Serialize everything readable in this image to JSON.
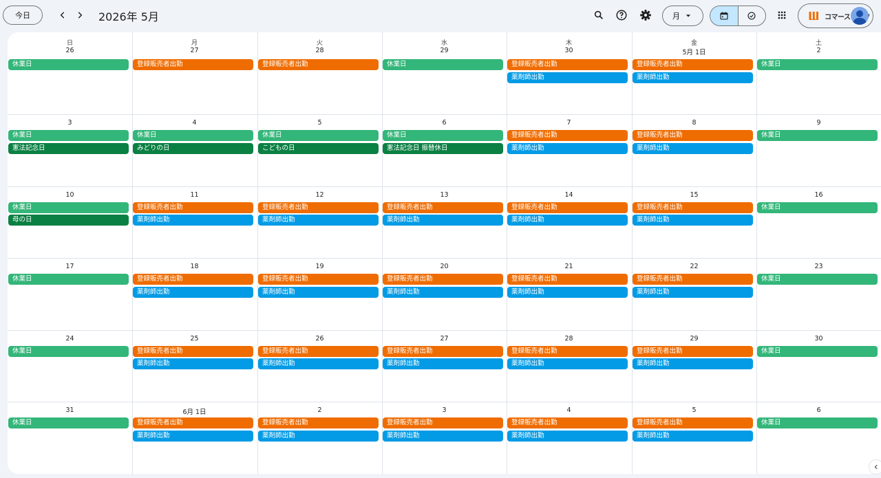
{
  "header": {
    "today_label": "今日",
    "month_title": "2026年 5月",
    "view_label": "月",
    "account_logo_text": "コマースライフ"
  },
  "weekdays": [
    "日",
    "月",
    "火",
    "水",
    "木",
    "金",
    "土"
  ],
  "colors": {
    "holiday_green": "#33b679",
    "national_holiday_green": "#0b8043",
    "orange": "#ef6c00",
    "blue": "#039be5",
    "accent": "#c2e7ff"
  },
  "event_types": {
    "kyugyo": "休業日",
    "hanbai": "登録販売者出勤",
    "yakuzai": "薬剤師出勤"
  },
  "weeks": [
    {
      "days": [
        {
          "label": "26",
          "events": [
            {
              "text": "休業日",
              "color": "holiday_green"
            }
          ]
        },
        {
          "label": "27",
          "events": [
            {
              "text": "登録販売者出勤",
              "color": "orange"
            }
          ]
        },
        {
          "label": "28",
          "events": [
            {
              "text": "登録販売者出勤",
              "color": "orange"
            }
          ]
        },
        {
          "label": "29",
          "events": [
            {
              "text": "休業日",
              "color": "holiday_green"
            }
          ]
        },
        {
          "label": "30",
          "events": [
            {
              "text": "登録販売者出勤",
              "color": "orange"
            },
            {
              "text": "薬剤師出勤",
              "color": "blue"
            }
          ]
        },
        {
          "label": "5月 1日",
          "events": [
            {
              "text": "登録販売者出勤",
              "color": "orange"
            },
            {
              "text": "薬剤師出勤",
              "color": "blue"
            }
          ]
        },
        {
          "label": "2",
          "events": [
            {
              "text": "休業日",
              "color": "holiday_green"
            }
          ]
        }
      ]
    },
    {
      "days": [
        {
          "label": "3",
          "events": [
            {
              "text": "休業日",
              "color": "holiday_green"
            },
            {
              "text": "憲法記念日",
              "color": "national_holiday_green"
            }
          ]
        },
        {
          "label": "4",
          "events": [
            {
              "text": "休業日",
              "color": "holiday_green"
            },
            {
              "text": "みどりの日",
              "color": "national_holiday_green"
            }
          ]
        },
        {
          "label": "5",
          "events": [
            {
              "text": "休業日",
              "color": "holiday_green"
            },
            {
              "text": "こどもの日",
              "color": "national_holiday_green"
            }
          ]
        },
        {
          "label": "6",
          "events": [
            {
              "text": "休業日",
              "color": "holiday_green"
            },
            {
              "text": "憲法記念日 振替休日",
              "color": "national_holiday_green"
            }
          ]
        },
        {
          "label": "7",
          "events": [
            {
              "text": "登録販売者出勤",
              "color": "orange"
            },
            {
              "text": "薬剤師出勤",
              "color": "blue"
            }
          ]
        },
        {
          "label": "8",
          "events": [
            {
              "text": "登録販売者出勤",
              "color": "orange"
            },
            {
              "text": "薬剤師出勤",
              "color": "blue"
            }
          ]
        },
        {
          "label": "9",
          "events": [
            {
              "text": "休業日",
              "color": "holiday_green"
            }
          ]
        }
      ]
    },
    {
      "days": [
        {
          "label": "10",
          "events": [
            {
              "text": "休業日",
              "color": "holiday_green"
            },
            {
              "text": "母の日",
              "color": "national_holiday_green"
            }
          ]
        },
        {
          "label": "11",
          "events": [
            {
              "text": "登録販売者出勤",
              "color": "orange"
            },
            {
              "text": "薬剤師出勤",
              "color": "blue"
            }
          ]
        },
        {
          "label": "12",
          "events": [
            {
              "text": "登録販売者出勤",
              "color": "orange"
            },
            {
              "text": "薬剤師出勤",
              "color": "blue"
            }
          ]
        },
        {
          "label": "13",
          "events": [
            {
              "text": "登録販売者出勤",
              "color": "orange"
            },
            {
              "text": "薬剤師出勤",
              "color": "blue"
            }
          ]
        },
        {
          "label": "14",
          "events": [
            {
              "text": "登録販売者出勤",
              "color": "orange"
            },
            {
              "text": "薬剤師出勤",
              "color": "blue"
            }
          ]
        },
        {
          "label": "15",
          "events": [
            {
              "text": "登録販売者出勤",
              "color": "orange"
            },
            {
              "text": "薬剤師出勤",
              "color": "blue"
            }
          ]
        },
        {
          "label": "16",
          "events": [
            {
              "text": "休業日",
              "color": "holiday_green"
            }
          ]
        }
      ]
    },
    {
      "days": [
        {
          "label": "17",
          "events": [
            {
              "text": "休業日",
              "color": "holiday_green"
            }
          ]
        },
        {
          "label": "18",
          "events": [
            {
              "text": "登録販売者出勤",
              "color": "orange"
            },
            {
              "text": "薬剤師出勤",
              "color": "blue"
            }
          ]
        },
        {
          "label": "19",
          "events": [
            {
              "text": "登録販売者出勤",
              "color": "orange"
            },
            {
              "text": "薬剤師出勤",
              "color": "blue"
            }
          ]
        },
        {
          "label": "20",
          "events": [
            {
              "text": "登録販売者出勤",
              "color": "orange"
            },
            {
              "text": "薬剤師出勤",
              "color": "blue"
            }
          ]
        },
        {
          "label": "21",
          "events": [
            {
              "text": "登録販売者出勤",
              "color": "orange"
            },
            {
              "text": "薬剤師出勤",
              "color": "blue"
            }
          ]
        },
        {
          "label": "22",
          "events": [
            {
              "text": "登録販売者出勤",
              "color": "orange"
            },
            {
              "text": "薬剤師出勤",
              "color": "blue"
            }
          ]
        },
        {
          "label": "23",
          "events": [
            {
              "text": "休業日",
              "color": "holiday_green"
            }
          ]
        }
      ]
    },
    {
      "days": [
        {
          "label": "24",
          "events": [
            {
              "text": "休業日",
              "color": "holiday_green"
            }
          ]
        },
        {
          "label": "25",
          "events": [
            {
              "text": "登録販売者出勤",
              "color": "orange"
            },
            {
              "text": "薬剤師出勤",
              "color": "blue"
            }
          ]
        },
        {
          "label": "26",
          "events": [
            {
              "text": "登録販売者出勤",
              "color": "orange"
            },
            {
              "text": "薬剤師出勤",
              "color": "blue"
            }
          ]
        },
        {
          "label": "27",
          "events": [
            {
              "text": "登録販売者出勤",
              "color": "orange"
            },
            {
              "text": "薬剤師出勤",
              "color": "blue"
            }
          ]
        },
        {
          "label": "28",
          "events": [
            {
              "text": "登録販売者出勤",
              "color": "orange"
            },
            {
              "text": "薬剤師出勤",
              "color": "blue"
            }
          ]
        },
        {
          "label": "29",
          "events": [
            {
              "text": "登録販売者出勤",
              "color": "orange"
            },
            {
              "text": "薬剤師出勤",
              "color": "blue"
            }
          ]
        },
        {
          "label": "30",
          "events": [
            {
              "text": "休業日",
              "color": "holiday_green"
            }
          ]
        }
      ]
    },
    {
      "days": [
        {
          "label": "31",
          "events": [
            {
              "text": "休業日",
              "color": "holiday_green"
            }
          ]
        },
        {
          "label": "6月 1日",
          "events": [
            {
              "text": "登録販売者出勤",
              "color": "orange"
            },
            {
              "text": "薬剤師出勤",
              "color": "blue"
            }
          ]
        },
        {
          "label": "2",
          "events": [
            {
              "text": "登録販売者出勤",
              "color": "orange"
            },
            {
              "text": "薬剤師出勤",
              "color": "blue"
            }
          ]
        },
        {
          "label": "3",
          "events": [
            {
              "text": "登録販売者出勤",
              "color": "orange"
            },
            {
              "text": "薬剤師出勤",
              "color": "blue"
            }
          ]
        },
        {
          "label": "4",
          "events": [
            {
              "text": "登録販売者出勤",
              "color": "orange"
            },
            {
              "text": "薬剤師出勤",
              "color": "blue"
            }
          ]
        },
        {
          "label": "5",
          "events": [
            {
              "text": "登録販売者出勤",
              "color": "orange"
            },
            {
              "text": "薬剤師出勤",
              "color": "blue"
            }
          ]
        },
        {
          "label": "6",
          "events": [
            {
              "text": "休業日",
              "color": "holiday_green"
            }
          ]
        }
      ]
    }
  ]
}
